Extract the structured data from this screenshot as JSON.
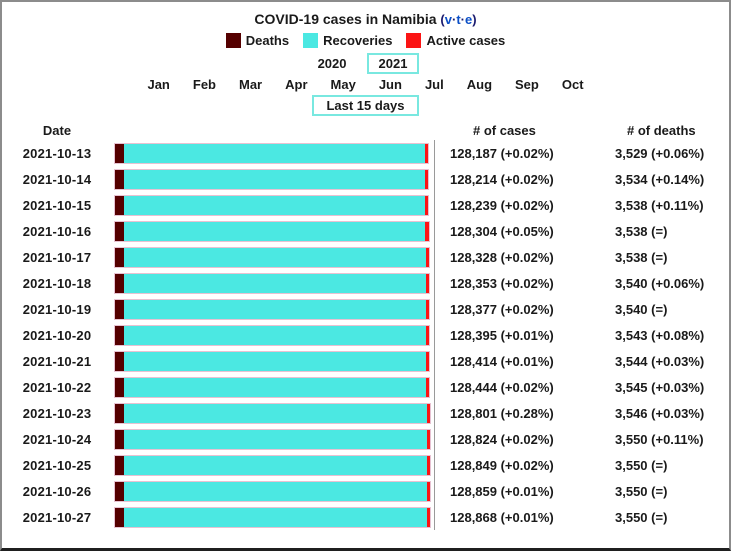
{
  "title": "COVID-19 cases in Namibia",
  "vte": {
    "open": "(",
    "v": "v",
    "t": "t",
    "e": "e",
    "close": ")",
    "dot": "·"
  },
  "legend": [
    {
      "label": "Deaths",
      "color": "#550000"
    },
    {
      "label": "Recoveries",
      "color": "#4be8e2"
    },
    {
      "label": "Active cases",
      "color": "#fb1414"
    }
  ],
  "years": [
    {
      "label": "2020",
      "selected": false
    },
    {
      "label": "2021",
      "selected": true
    }
  ],
  "months": [
    "Jan",
    "Feb",
    "Mar",
    "Apr",
    "May",
    "Jun",
    "Jul",
    "Aug",
    "Sep",
    "Oct"
  ],
  "range_button": "Last 15 days",
  "table_headers": {
    "date": "Date",
    "cases": "# of cases",
    "deaths": "# of deaths"
  },
  "colors": {
    "deaths": "#550000",
    "recoveries": "#4be8e2",
    "active": "#fb1414",
    "box_accent": "#79e8e0",
    "link_blue": "#0b4fc7",
    "frame_border": "#8c8c8c",
    "separator": "#9a9a9a"
  },
  "chart_data": {
    "type": "bar",
    "orientation": "horizontal-stacked",
    "series_names": [
      "Deaths",
      "Recoveries",
      "Active cases"
    ],
    "x_axis_max_cases": 128868,
    "active_fraction_estimate": 0.01,
    "rows": [
      {
        "date": "2021-10-13",
        "cases_n": 128187,
        "deaths_n": 3529,
        "cases": "128,187 (+0.02%)",
        "deaths": "3,529 (+0.06%)"
      },
      {
        "date": "2021-10-14",
        "cases_n": 128214,
        "deaths_n": 3534,
        "cases": "128,214 (+0.02%)",
        "deaths": "3,534 (+0.14%)"
      },
      {
        "date": "2021-10-15",
        "cases_n": 128239,
        "deaths_n": 3538,
        "cases": "128,239 (+0.02%)",
        "deaths": "3,538 (+0.11%)"
      },
      {
        "date": "2021-10-16",
        "cases_n": 128304,
        "deaths_n": 3538,
        "cases": "128,304 (+0.05%)",
        "deaths": "3,538 (=)"
      },
      {
        "date": "2021-10-17",
        "cases_n": 128328,
        "deaths_n": 3538,
        "cases": "128,328 (+0.02%)",
        "deaths": "3,538 (=)"
      },
      {
        "date": "2021-10-18",
        "cases_n": 128353,
        "deaths_n": 3540,
        "cases": "128,353 (+0.02%)",
        "deaths": "3,540 (+0.06%)"
      },
      {
        "date": "2021-10-19",
        "cases_n": 128377,
        "deaths_n": 3540,
        "cases": "128,377 (+0.02%)",
        "deaths": "3,540 (=)"
      },
      {
        "date": "2021-10-20",
        "cases_n": 128395,
        "deaths_n": 3543,
        "cases": "128,395 (+0.01%)",
        "deaths": "3,543 (+0.08%)"
      },
      {
        "date": "2021-10-21",
        "cases_n": 128414,
        "deaths_n": 3544,
        "cases": "128,414 (+0.01%)",
        "deaths": "3,544 (+0.03%)"
      },
      {
        "date": "2021-10-22",
        "cases_n": 128444,
        "deaths_n": 3545,
        "cases": "128,444 (+0.02%)",
        "deaths": "3,545 (+0.03%)"
      },
      {
        "date": "2021-10-23",
        "cases_n": 128801,
        "deaths_n": 3546,
        "cases": "128,801 (+0.28%)",
        "deaths": "3,546 (+0.03%)"
      },
      {
        "date": "2021-10-24",
        "cases_n": 128824,
        "deaths_n": 3550,
        "cases": "128,824 (+0.02%)",
        "deaths": "3,550 (+0.11%)"
      },
      {
        "date": "2021-10-25",
        "cases_n": 128849,
        "deaths_n": 3550,
        "cases": "128,849 (+0.02%)",
        "deaths": "3,550 (=)"
      },
      {
        "date": "2021-10-26",
        "cases_n": 128859,
        "deaths_n": 3550,
        "cases": "128,859 (+0.01%)",
        "deaths": "3,550 (=)"
      },
      {
        "date": "2021-10-27",
        "cases_n": 128868,
        "deaths_n": 3550,
        "cases": "128,868 (+0.01%)",
        "deaths": "3,550 (=)"
      }
    ]
  }
}
